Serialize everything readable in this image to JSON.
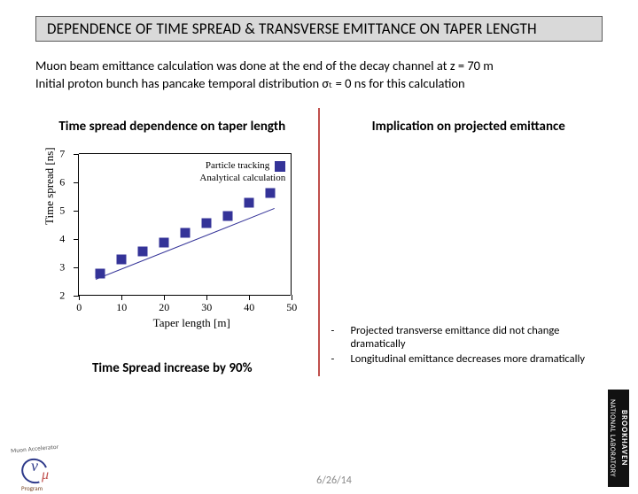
{
  "title": "DEPENDENCE OF TIME SPREAD & TRANSVERSE EMITTANCE ON TAPER LENGTH",
  "body_line1": "Muon beam emittance calculation was done at the end of the decay channel at z = 70 m",
  "body_line2": "Initial proton bunch has pancake temporal distribution σₜ = 0 ns for this calculation",
  "left": {
    "subtitle": "Time spread dependence on taper length",
    "caption": "Time Spread increase by 90%",
    "chart": {
      "type": "scatter",
      "xlabel": "Taper length [m]",
      "ylabel": "Time spread [ns]",
      "xlim": [
        0,
        50
      ],
      "ylim": [
        2,
        7
      ],
      "xticks": [
        0,
        10,
        20,
        30,
        40,
        50
      ],
      "yticks": [
        2,
        3,
        4,
        5,
        6,
        7
      ],
      "marker_color": "#343398",
      "marker_size": 11,
      "line_color": "#343398",
      "line_width": 1.5,
      "background_color": "#ffffff",
      "legend": {
        "items": [
          "Particle tracking",
          "Analytical calculation"
        ],
        "position": "top-right"
      },
      "points": [
        {
          "x": 5,
          "y": 2.75
        },
        {
          "x": 10,
          "y": 3.25
        },
        {
          "x": 15,
          "y": 3.55
        },
        {
          "x": 20,
          "y": 3.85
        },
        {
          "x": 25,
          "y": 4.2
        },
        {
          "x": 30,
          "y": 4.55
        },
        {
          "x": 35,
          "y": 4.8
        },
        {
          "x": 40,
          "y": 5.25
        },
        {
          "x": 45,
          "y": 5.6
        }
      ],
      "trend_line": {
        "x1": 4,
        "y1": 2.6,
        "x2": 46,
        "y2": 5.1
      }
    }
  },
  "right": {
    "subtitle": "Implication on projected emittance",
    "bullets": [
      "Projected transverse emittance did not change dramatically",
      "Longitudinal emittance decreases more dramatically"
    ]
  },
  "footer": {
    "date": "6/26/14",
    "logo_text_top": "Muon Accelerator",
    "logo_text_bottom": "Program",
    "bnl_big": "BROOKHAVEN",
    "bnl_small": "NATIONAL LABORATORY"
  },
  "colors": {
    "title_bg": "#d9d9d9",
    "title_border": "#595959",
    "divider": "#c0504d",
    "text": "#000000"
  }
}
